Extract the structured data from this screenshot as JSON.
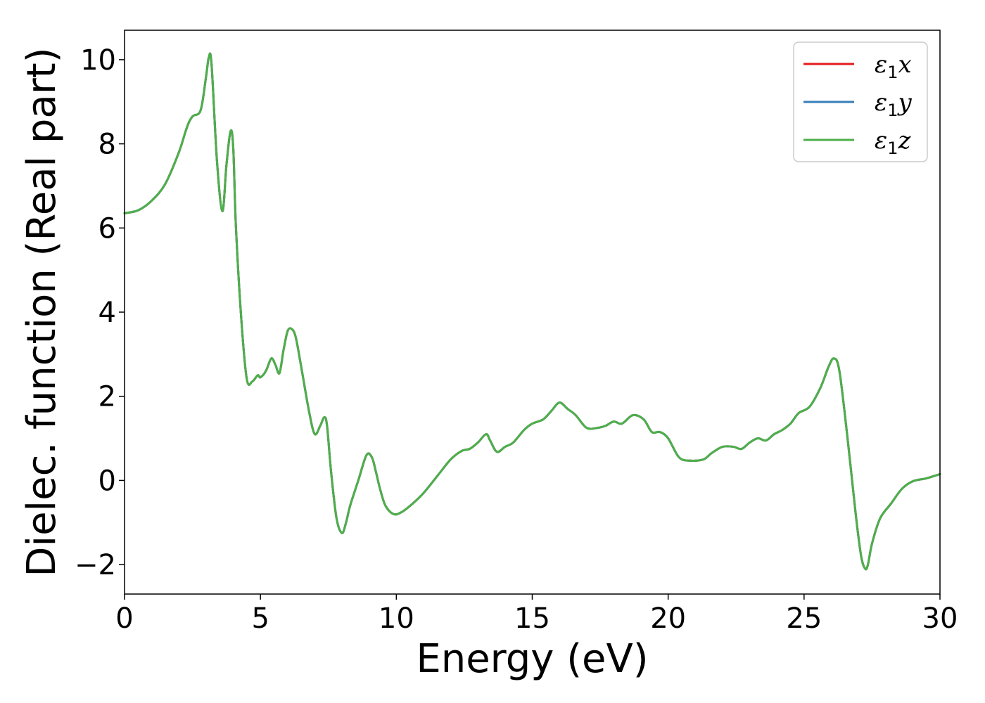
{
  "chart_data": {
    "type": "line",
    "xlabel": "Energy (eV)",
    "ylabel": "Dielec. function (Real part)",
    "xlim": [
      0,
      30
    ],
    "ylim": [
      -2.7,
      10.7
    ],
    "xticks": [
      0,
      5,
      10,
      15,
      20,
      25,
      30
    ],
    "xtick_labels": [
      "0",
      "5",
      "10",
      "15",
      "20",
      "25",
      "30"
    ],
    "yticks": [
      -2,
      0,
      2,
      4,
      6,
      8,
      10
    ],
    "ytick_labels": [
      "−2",
      "0",
      "2",
      "4",
      "6",
      "8",
      "10"
    ],
    "grid": false,
    "legend_position": "top-right",
    "series": [
      {
        "name": "ε1x",
        "legend_base": "ε",
        "legend_sub": "1",
        "legend_var": "x",
        "color": "#e41a1c",
        "x": [
          0,
          0.5,
          1.0,
          1.5,
          2.0,
          2.3,
          2.5,
          2.8,
          3.0,
          3.1,
          3.2,
          3.4,
          3.6,
          3.75,
          3.9,
          4.0,
          4.1,
          4.3,
          4.5,
          4.7,
          4.9,
          5.0,
          5.2,
          5.4,
          5.55,
          5.7,
          5.85,
          6.0,
          6.15,
          6.3,
          6.5,
          6.8,
          7.0,
          7.2,
          7.35,
          7.45,
          7.6,
          7.8,
          8.0,
          8.15,
          8.3,
          8.6,
          8.9,
          9.1,
          9.25,
          9.4,
          9.6,
          9.9,
          10.2,
          10.6,
          11.0,
          11.5,
          12.0,
          12.4,
          12.7,
          13.0,
          13.3,
          13.45,
          13.7,
          14.0,
          14.3,
          14.7,
          15.0,
          15.4,
          15.7,
          16.0,
          16.3,
          16.6,
          17.0,
          17.4,
          17.7,
          18.0,
          18.3,
          18.7,
          19.1,
          19.4,
          19.7,
          20.0,
          20.4,
          20.8,
          21.3,
          21.6,
          22.0,
          22.4,
          22.7,
          23.0,
          23.3,
          23.6,
          23.9,
          24.2,
          24.5,
          24.8,
          25.2,
          25.6,
          25.9,
          26.1,
          26.3,
          26.6,
          26.9,
          27.1,
          27.25,
          27.35,
          27.5,
          27.8,
          28.2,
          28.6,
          29.0,
          29.5,
          30.0
        ],
        "y": [
          6.35,
          6.42,
          6.65,
          7.05,
          7.8,
          8.4,
          8.65,
          8.8,
          9.6,
          10.05,
          9.9,
          7.6,
          6.4,
          7.5,
          8.3,
          7.9,
          6.0,
          3.8,
          2.4,
          2.35,
          2.5,
          2.45,
          2.6,
          2.9,
          2.75,
          2.55,
          3.1,
          3.55,
          3.6,
          3.4,
          2.7,
          1.6,
          1.1,
          1.3,
          1.5,
          1.3,
          0.2,
          -0.9,
          -1.25,
          -1.0,
          -0.6,
          0.0,
          0.6,
          0.55,
          0.2,
          -0.2,
          -0.6,
          -0.8,
          -0.75,
          -0.55,
          -0.3,
          0.1,
          0.5,
          0.7,
          0.75,
          0.9,
          1.1,
          0.95,
          0.68,
          0.8,
          0.9,
          1.2,
          1.35,
          1.45,
          1.65,
          1.85,
          1.7,
          1.55,
          1.25,
          1.25,
          1.3,
          1.4,
          1.35,
          1.55,
          1.45,
          1.15,
          1.15,
          1.0,
          0.55,
          0.47,
          0.5,
          0.65,
          0.8,
          0.8,
          0.75,
          0.9,
          1.0,
          0.95,
          1.1,
          1.2,
          1.35,
          1.6,
          1.75,
          2.2,
          2.7,
          2.9,
          2.6,
          1.0,
          -0.8,
          -1.8,
          -2.1,
          -2.0,
          -1.5,
          -0.9,
          -0.55,
          -0.2,
          -0.02,
          0.05,
          0.15
        ]
      },
      {
        "name": "ε1y",
        "legend_base": "ε",
        "legend_sub": "1",
        "legend_var": "y",
        "color": "#377eb8",
        "x": [
          0,
          0.5,
          1.0,
          1.5,
          2.0,
          2.3,
          2.5,
          2.8,
          3.0,
          3.1,
          3.2,
          3.4,
          3.6,
          3.75,
          3.9,
          4.0,
          4.1,
          4.3,
          4.5,
          4.7,
          4.9,
          5.0,
          5.2,
          5.4,
          5.55,
          5.7,
          5.85,
          6.0,
          6.15,
          6.3,
          6.5,
          6.8,
          7.0,
          7.2,
          7.35,
          7.45,
          7.6,
          7.8,
          8.0,
          8.15,
          8.3,
          8.6,
          8.9,
          9.1,
          9.25,
          9.4,
          9.6,
          9.9,
          10.2,
          10.6,
          11.0,
          11.5,
          12.0,
          12.4,
          12.7,
          13.0,
          13.3,
          13.45,
          13.7,
          14.0,
          14.3,
          14.7,
          15.0,
          15.4,
          15.7,
          16.0,
          16.3,
          16.6,
          17.0,
          17.4,
          17.7,
          18.0,
          18.3,
          18.7,
          19.1,
          19.4,
          19.7,
          20.0,
          20.4,
          20.8,
          21.3,
          21.6,
          22.0,
          22.4,
          22.7,
          23.0,
          23.3,
          23.6,
          23.9,
          24.2,
          24.5,
          24.8,
          25.2,
          25.6,
          25.9,
          26.1,
          26.3,
          26.6,
          26.9,
          27.1,
          27.25,
          27.35,
          27.5,
          27.8,
          28.2,
          28.6,
          29.0,
          29.5,
          30.0
        ],
        "y": [
          6.35,
          6.42,
          6.65,
          7.05,
          7.8,
          8.4,
          8.65,
          8.8,
          9.6,
          10.05,
          9.9,
          7.6,
          6.4,
          7.5,
          8.3,
          7.9,
          6.0,
          3.8,
          2.4,
          2.35,
          2.5,
          2.45,
          2.6,
          2.9,
          2.75,
          2.55,
          3.1,
          3.55,
          3.6,
          3.4,
          2.7,
          1.6,
          1.1,
          1.3,
          1.5,
          1.3,
          0.2,
          -0.9,
          -1.25,
          -1.0,
          -0.6,
          0.0,
          0.6,
          0.55,
          0.2,
          -0.2,
          -0.6,
          -0.8,
          -0.75,
          -0.55,
          -0.3,
          0.1,
          0.5,
          0.7,
          0.75,
          0.9,
          1.1,
          0.95,
          0.68,
          0.8,
          0.9,
          1.2,
          1.35,
          1.45,
          1.65,
          1.85,
          1.7,
          1.55,
          1.25,
          1.25,
          1.3,
          1.4,
          1.35,
          1.55,
          1.45,
          1.15,
          1.15,
          1.0,
          0.55,
          0.47,
          0.5,
          0.65,
          0.8,
          0.8,
          0.75,
          0.9,
          1.0,
          0.95,
          1.1,
          1.2,
          1.35,
          1.6,
          1.75,
          2.2,
          2.7,
          2.9,
          2.6,
          1.0,
          -0.8,
          -1.8,
          -2.1,
          -2.0,
          -1.5,
          -0.9,
          -0.55,
          -0.2,
          -0.02,
          0.05,
          0.15
        ]
      },
      {
        "name": "ε1z",
        "legend_base": "ε",
        "legend_sub": "1",
        "legend_var": "z",
        "color": "#4daf4a",
        "x": [
          0,
          0.5,
          1.0,
          1.5,
          2.0,
          2.3,
          2.5,
          2.8,
          3.0,
          3.1,
          3.2,
          3.4,
          3.6,
          3.75,
          3.9,
          4.0,
          4.1,
          4.3,
          4.5,
          4.7,
          4.9,
          5.0,
          5.2,
          5.4,
          5.55,
          5.7,
          5.85,
          6.0,
          6.15,
          6.3,
          6.5,
          6.8,
          7.0,
          7.2,
          7.35,
          7.45,
          7.6,
          7.8,
          8.0,
          8.15,
          8.3,
          8.6,
          8.9,
          9.1,
          9.25,
          9.4,
          9.6,
          9.9,
          10.2,
          10.6,
          11.0,
          11.5,
          12.0,
          12.4,
          12.7,
          13.0,
          13.3,
          13.45,
          13.7,
          14.0,
          14.3,
          14.7,
          15.0,
          15.4,
          15.7,
          16.0,
          16.3,
          16.6,
          17.0,
          17.4,
          17.7,
          18.0,
          18.3,
          18.7,
          19.1,
          19.4,
          19.7,
          20.0,
          20.4,
          20.8,
          21.3,
          21.6,
          22.0,
          22.4,
          22.7,
          23.0,
          23.3,
          23.6,
          23.9,
          24.2,
          24.5,
          24.8,
          25.2,
          25.6,
          25.9,
          26.1,
          26.3,
          26.6,
          26.9,
          27.1,
          27.25,
          27.35,
          27.5,
          27.8,
          28.2,
          28.6,
          29.0,
          29.5,
          30.0
        ],
        "y": [
          6.35,
          6.42,
          6.65,
          7.05,
          7.8,
          8.4,
          8.65,
          8.8,
          9.6,
          10.05,
          9.9,
          7.6,
          6.4,
          7.5,
          8.3,
          7.9,
          6.0,
          3.8,
          2.4,
          2.35,
          2.5,
          2.45,
          2.6,
          2.9,
          2.75,
          2.55,
          3.1,
          3.55,
          3.6,
          3.4,
          2.7,
          1.6,
          1.1,
          1.3,
          1.5,
          1.3,
          0.2,
          -0.9,
          -1.25,
          -1.0,
          -0.6,
          0.0,
          0.6,
          0.55,
          0.2,
          -0.2,
          -0.6,
          -0.8,
          -0.75,
          -0.55,
          -0.3,
          0.1,
          0.5,
          0.7,
          0.75,
          0.9,
          1.1,
          0.95,
          0.68,
          0.8,
          0.9,
          1.2,
          1.35,
          1.45,
          1.65,
          1.85,
          1.7,
          1.55,
          1.25,
          1.25,
          1.3,
          1.4,
          1.35,
          1.55,
          1.45,
          1.15,
          1.15,
          1.0,
          0.55,
          0.47,
          0.5,
          0.65,
          0.8,
          0.8,
          0.75,
          0.9,
          1.0,
          0.95,
          1.1,
          1.2,
          1.35,
          1.6,
          1.75,
          2.2,
          2.7,
          2.9,
          2.6,
          1.0,
          -0.8,
          -1.8,
          -2.1,
          -2.0,
          -1.5,
          -0.9,
          -0.55,
          -0.2,
          -0.02,
          0.05,
          0.15
        ]
      }
    ]
  }
}
